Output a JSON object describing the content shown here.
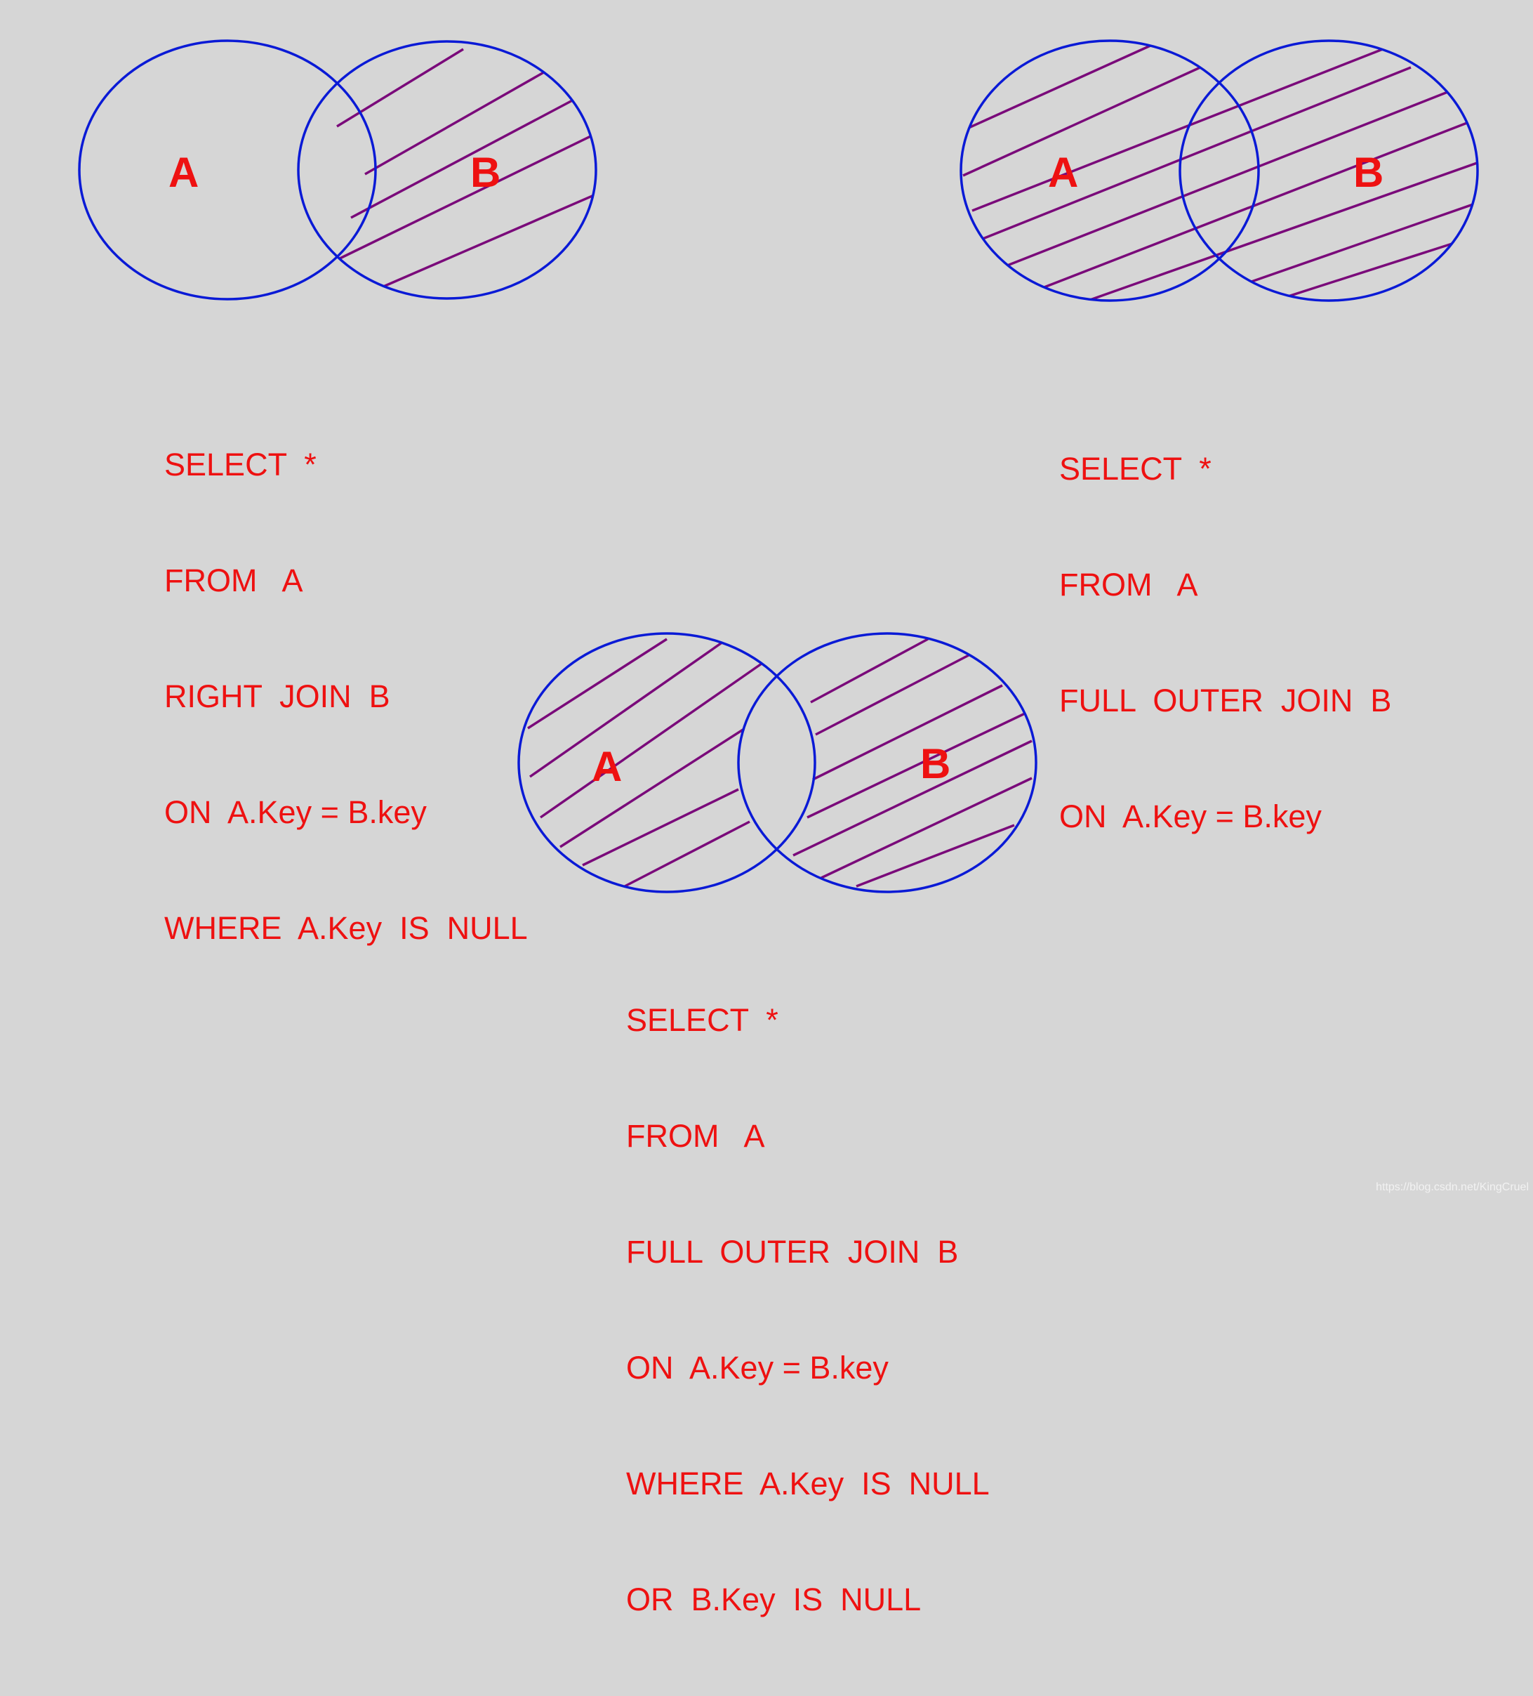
{
  "diagrams": [
    {
      "set_a_label": "A",
      "set_b_label": "B",
      "shaded_region": "B only",
      "sql_lines": [
        "SELECT  *",
        "FROM   A",
        "RIGHT  JOIN  B",
        "ON  A.Key = B.key",
        "WHERE  A.Key  IS  NULL"
      ]
    },
    {
      "set_a_label": "A",
      "set_b_label": "B",
      "shaded_region": "A and B (all)",
      "sql_lines": [
        "SELECT  *",
        "FROM   A",
        "FULL  OUTER  JOIN  B",
        "ON  A.Key = B.key"
      ]
    },
    {
      "set_a_label": "A",
      "set_b_label": "B",
      "shaded_region": "A only and B only (excluding intersection)",
      "sql_lines": [
        "SELECT  *",
        "FROM   A",
        "FULL  OUTER  JOIN  B",
        "ON  A.Key = B.key",
        "WHERE  A.Key  IS  NULL",
        "OR  B.Key  IS  NULL"
      ]
    }
  ],
  "watermark": "https://blog.csdn.net/KingCruel",
  "colors": {
    "background": "#d6d6d6",
    "circle_stroke": "#0a1ad6",
    "hatch": "#7a0a7a",
    "text": "#ee1111"
  }
}
